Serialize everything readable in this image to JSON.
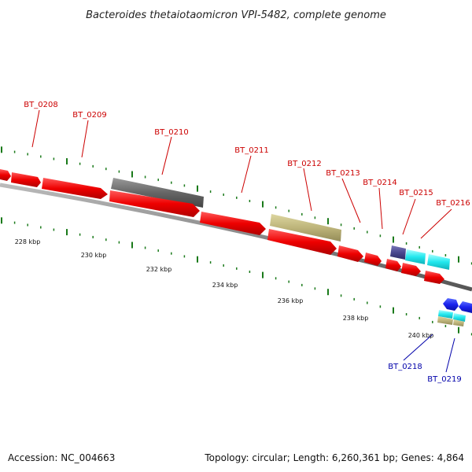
{
  "header": {
    "title": "Bacteroides thetaiotaomicron VPI-5482, complete genome"
  },
  "footer": {
    "accession": "Accession: NC_004663",
    "topology": "Topology: circular; Length: 6,260,361 bp; Genes: 4,864"
  },
  "colors": {
    "forward_label": "#cc0000",
    "reverse_label": "#0000aa",
    "backbone": "#808080",
    "tick": "#1a7a1a"
  },
  "scale_labels": [
    "228 kbp",
    "230 kbp",
    "232 kbp",
    "234 kbp",
    "236 kbp",
    "238 kbp",
    "240 kbp"
  ],
  "gene_labels": [
    {
      "name": "BT_0208",
      "strand": "forward"
    },
    {
      "name": "BT_0209",
      "strand": "forward"
    },
    {
      "name": "BT_0210",
      "strand": "forward"
    },
    {
      "name": "BT_0211",
      "strand": "forward"
    },
    {
      "name": "BT_0212",
      "strand": "forward"
    },
    {
      "name": "BT_0213",
      "strand": "forward"
    },
    {
      "name": "BT_0214",
      "strand": "forward"
    },
    {
      "name": "BT_0215",
      "strand": "forward"
    },
    {
      "name": "BT_0216",
      "strand": "forward"
    },
    {
      "name": "BT_0218",
      "strand": "reverse"
    },
    {
      "name": "BT_0219",
      "strand": "reverse"
    }
  ]
}
